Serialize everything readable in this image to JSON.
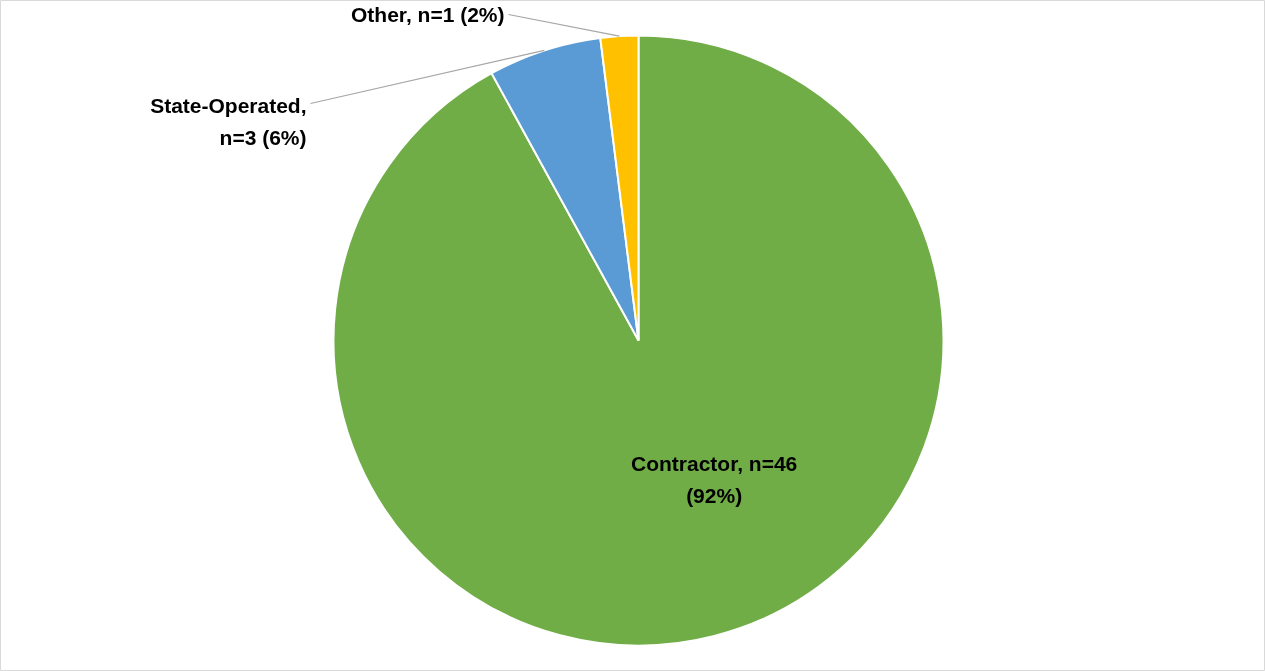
{
  "chart_data": {
    "type": "pie",
    "categories": [
      "Contractor, n=46 (92%)",
      "State-Operated, n=3 (6%)",
      "Other, n=1 (2%)"
    ],
    "values": [
      46,
      3,
      1
    ],
    "colors": [
      "#70ad47",
      "#5b9bd5",
      "#ffc000"
    ]
  }
}
